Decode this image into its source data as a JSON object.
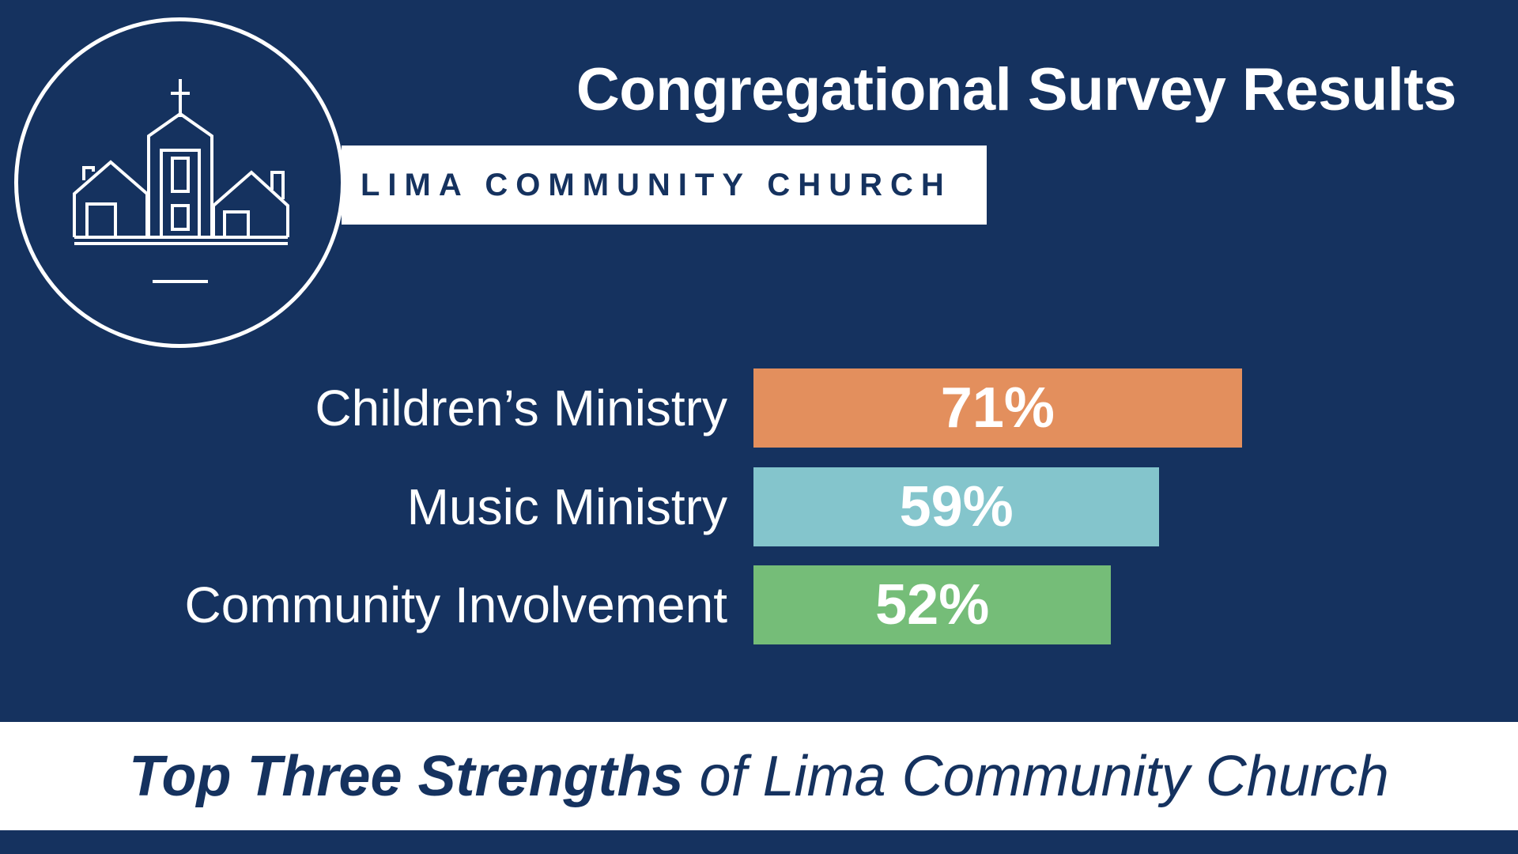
{
  "header": {
    "title": "Congregational Survey Results",
    "org_name": "LIMA COMMUNITY CHURCH"
  },
  "logo": {
    "icon": "church-village-icon"
  },
  "footer": {
    "strong": "Top Three Strengths",
    "rest": " of Lima Community Church"
  },
  "colors": {
    "background": "#15325f",
    "white": "#ffffff",
    "orange": "#e38f5d",
    "teal": "#84c5cc",
    "green": "#75bd78"
  },
  "chart_data": {
    "type": "bar",
    "orientation": "horizontal",
    "categories": [
      "Children’s Ministry",
      "Music Ministry",
      "Community Involvement"
    ],
    "values": [
      71,
      59,
      52
    ],
    "value_labels": [
      "71%",
      "59%",
      "52%"
    ],
    "colors": [
      "#e38f5d",
      "#84c5cc",
      "#75bd78"
    ],
    "xlim": [
      0,
      100
    ],
    "grid": false,
    "legend": false
  }
}
